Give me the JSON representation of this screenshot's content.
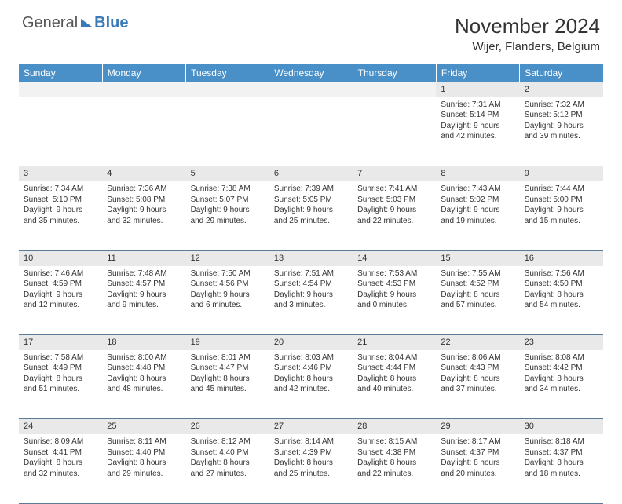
{
  "brand": {
    "part1": "General",
    "part2": "Blue"
  },
  "title": "November 2024",
  "location": "Wijer, Flanders, Belgium",
  "colors": {
    "header_bg": "#4a90c8",
    "header_text": "#ffffff",
    "daynum_bg": "#e9e9e9",
    "empty_bg": "#f2f2f2",
    "border": "#5a7a95",
    "brand_blue": "#3a7ab8",
    "text": "#333333"
  },
  "day_headers": [
    "Sunday",
    "Monday",
    "Tuesday",
    "Wednesday",
    "Thursday",
    "Friday",
    "Saturday"
  ],
  "weeks": [
    [
      null,
      null,
      null,
      null,
      null,
      {
        "n": "1",
        "sunrise": "7:31 AM",
        "sunset": "5:14 PM",
        "daylight": "9 hours and 42 minutes."
      },
      {
        "n": "2",
        "sunrise": "7:32 AM",
        "sunset": "5:12 PM",
        "daylight": "9 hours and 39 minutes."
      }
    ],
    [
      {
        "n": "3",
        "sunrise": "7:34 AM",
        "sunset": "5:10 PM",
        "daylight": "9 hours and 35 minutes."
      },
      {
        "n": "4",
        "sunrise": "7:36 AM",
        "sunset": "5:08 PM",
        "daylight": "9 hours and 32 minutes."
      },
      {
        "n": "5",
        "sunrise": "7:38 AM",
        "sunset": "5:07 PM",
        "daylight": "9 hours and 29 minutes."
      },
      {
        "n": "6",
        "sunrise": "7:39 AM",
        "sunset": "5:05 PM",
        "daylight": "9 hours and 25 minutes."
      },
      {
        "n": "7",
        "sunrise": "7:41 AM",
        "sunset": "5:03 PM",
        "daylight": "9 hours and 22 minutes."
      },
      {
        "n": "8",
        "sunrise": "7:43 AM",
        "sunset": "5:02 PM",
        "daylight": "9 hours and 19 minutes."
      },
      {
        "n": "9",
        "sunrise": "7:44 AM",
        "sunset": "5:00 PM",
        "daylight": "9 hours and 15 minutes."
      }
    ],
    [
      {
        "n": "10",
        "sunrise": "7:46 AM",
        "sunset": "4:59 PM",
        "daylight": "9 hours and 12 minutes."
      },
      {
        "n": "11",
        "sunrise": "7:48 AM",
        "sunset": "4:57 PM",
        "daylight": "9 hours and 9 minutes."
      },
      {
        "n": "12",
        "sunrise": "7:50 AM",
        "sunset": "4:56 PM",
        "daylight": "9 hours and 6 minutes."
      },
      {
        "n": "13",
        "sunrise": "7:51 AM",
        "sunset": "4:54 PM",
        "daylight": "9 hours and 3 minutes."
      },
      {
        "n": "14",
        "sunrise": "7:53 AM",
        "sunset": "4:53 PM",
        "daylight": "9 hours and 0 minutes."
      },
      {
        "n": "15",
        "sunrise": "7:55 AM",
        "sunset": "4:52 PM",
        "daylight": "8 hours and 57 minutes."
      },
      {
        "n": "16",
        "sunrise": "7:56 AM",
        "sunset": "4:50 PM",
        "daylight": "8 hours and 54 minutes."
      }
    ],
    [
      {
        "n": "17",
        "sunrise": "7:58 AM",
        "sunset": "4:49 PM",
        "daylight": "8 hours and 51 minutes."
      },
      {
        "n": "18",
        "sunrise": "8:00 AM",
        "sunset": "4:48 PM",
        "daylight": "8 hours and 48 minutes."
      },
      {
        "n": "19",
        "sunrise": "8:01 AM",
        "sunset": "4:47 PM",
        "daylight": "8 hours and 45 minutes."
      },
      {
        "n": "20",
        "sunrise": "8:03 AM",
        "sunset": "4:46 PM",
        "daylight": "8 hours and 42 minutes."
      },
      {
        "n": "21",
        "sunrise": "8:04 AM",
        "sunset": "4:44 PM",
        "daylight": "8 hours and 40 minutes."
      },
      {
        "n": "22",
        "sunrise": "8:06 AM",
        "sunset": "4:43 PM",
        "daylight": "8 hours and 37 minutes."
      },
      {
        "n": "23",
        "sunrise": "8:08 AM",
        "sunset": "4:42 PM",
        "daylight": "8 hours and 34 minutes."
      }
    ],
    [
      {
        "n": "24",
        "sunrise": "8:09 AM",
        "sunset": "4:41 PM",
        "daylight": "8 hours and 32 minutes."
      },
      {
        "n": "25",
        "sunrise": "8:11 AM",
        "sunset": "4:40 PM",
        "daylight": "8 hours and 29 minutes."
      },
      {
        "n": "26",
        "sunrise": "8:12 AM",
        "sunset": "4:40 PM",
        "daylight": "8 hours and 27 minutes."
      },
      {
        "n": "27",
        "sunrise": "8:14 AM",
        "sunset": "4:39 PM",
        "daylight": "8 hours and 25 minutes."
      },
      {
        "n": "28",
        "sunrise": "8:15 AM",
        "sunset": "4:38 PM",
        "daylight": "8 hours and 22 minutes."
      },
      {
        "n": "29",
        "sunrise": "8:17 AM",
        "sunset": "4:37 PM",
        "daylight": "8 hours and 20 minutes."
      },
      {
        "n": "30",
        "sunrise": "8:18 AM",
        "sunset": "4:37 PM",
        "daylight": "8 hours and 18 minutes."
      }
    ]
  ],
  "labels": {
    "sunrise": "Sunrise: ",
    "sunset": "Sunset: ",
    "daylight": "Daylight: "
  }
}
